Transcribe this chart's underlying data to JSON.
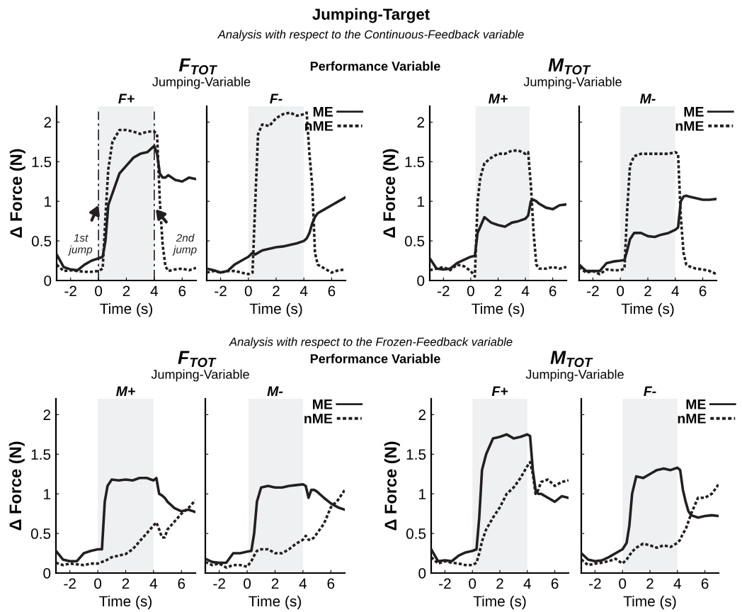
{
  "chart_data": [
    {
      "type": "line",
      "title": "F+",
      "xlabel": "Time (s)",
      "ylabel": "Δ Force (N)",
      "x": [
        -3,
        -2.5,
        -2,
        -1.5,
        -1,
        -0.5,
        0,
        0.3,
        0.5,
        0.7,
        1,
        1.5,
        2,
        2.5,
        3,
        3.5,
        4,
        4.2,
        4.4,
        4.6,
        4.8,
        5,
        5.5,
        6,
        6.5,
        7
      ],
      "xlim": [
        -3,
        7
      ],
      "ylim": [
        0,
        2.2
      ],
      "xticks": [
        -2,
        0,
        2,
        4,
        6
      ],
      "yticks": [
        0,
        0.5,
        1,
        1.5,
        2
      ],
      "grid": false,
      "legend": false,
      "bands": [
        {
          "axis": "x",
          "from": 0,
          "to": 4,
          "color": "#eff0f2"
        }
      ],
      "ref_lines": [
        {
          "axis": "x",
          "value": 0,
          "color": "#231f20",
          "line_style": "dashed"
        },
        {
          "axis": "x",
          "value": 4,
          "color": "#231f20",
          "line_style": "dashed"
        }
      ],
      "annotations": [
        "Jumping-Target",
        "Analysis with respect to the Continuous-Feedback variable",
        "Performance Variable",
        "F$_{TOT}$",
        "Jumping-Variable",
        {
          "text": "1st jump",
          "x": 0,
          "y": 0.95
        },
        {
          "text": "2nd jump",
          "x": 4.1,
          "y": 0.9
        }
      ],
      "series": [
        {
          "color": "#231f20",
          "line_style": "solid",
          "values": [
            0.33,
            0.17,
            0.14,
            0.13,
            0.2,
            0.25,
            0.28,
            0.3,
            0.5,
            0.95,
            1.1,
            1.35,
            1.45,
            1.55,
            1.6,
            1.62,
            1.7,
            1.6,
            1.35,
            1.3,
            1.3,
            1.33,
            1.27,
            1.25,
            1.3,
            1.28
          ]
        },
        {
          "color": "#231f20",
          "line_style": "dotted",
          "values": [
            0.2,
            0.12,
            0.13,
            0.12,
            0.11,
            0.11,
            0.12,
            0.15,
            0.8,
            1.4,
            1.75,
            1.9,
            1.9,
            1.88,
            1.85,
            1.88,
            1.88,
            1.85,
            1.0,
            0.45,
            0.18,
            0.12,
            0.14,
            0.15,
            0.13,
            0.16
          ]
        }
      ]
    },
    {
      "type": "line",
      "title": "F-",
      "xlabel": "Time (s)",
      "x": [
        -3,
        -2.5,
        -2,
        -1.5,
        -1,
        -0.5,
        0,
        0.3,
        0.5,
        0.7,
        1,
        1.5,
        2,
        2.5,
        3,
        3.5,
        4,
        4.2,
        4.4,
        4.6,
        4.8,
        5,
        5.5,
        6,
        6.5,
        7
      ],
      "xlim": [
        -3,
        7
      ],
      "ylim": [
        0,
        2.2
      ],
      "xticks": [
        -2,
        0,
        2,
        4,
        6
      ],
      "yticks": [
        0,
        0.5,
        1,
        1.5,
        2
      ],
      "tick_labels": "x",
      "grid": false,
      "legend": "top right",
      "bands": [
        {
          "axis": "x",
          "from": 0,
          "to": 4,
          "color": "#eff0f2"
        }
      ],
      "series": [
        {
          "name": "ME",
          "color": "#231f20",
          "line_style": "solid",
          "values": [
            0.15,
            0.13,
            0.1,
            0.12,
            0.2,
            0.25,
            0.3,
            0.35,
            0.33,
            0.35,
            0.38,
            0.4,
            0.42,
            0.43,
            0.45,
            0.47,
            0.5,
            0.53,
            0.6,
            0.72,
            0.8,
            0.85,
            0.9,
            0.95,
            1.0,
            1.05
          ]
        },
        {
          "name": "nME",
          "color": "#231f20",
          "line_style": "dotted",
          "values": [
            0.1,
            0.12,
            0.1,
            0.12,
            0.12,
            0.1,
            0.08,
            0.1,
            1.0,
            1.85,
            1.97,
            1.95,
            2.05,
            2.1,
            2.12,
            2.08,
            2.1,
            2.12,
            1.6,
            1.2,
            0.35,
            0.2,
            0.15,
            0.1,
            0.13,
            0.14
          ]
        }
      ]
    },
    {
      "type": "line",
      "title": "M+",
      "xlabel": "Time (s)",
      "ylabel": "Δ Force (N)",
      "x": [
        -3,
        -2.5,
        -2,
        -1.5,
        -1,
        -0.5,
        0,
        0.3,
        0.5,
        0.7,
        1,
        1.5,
        2,
        2.5,
        3,
        3.5,
        4,
        4.2,
        4.4,
        4.6,
        4.8,
        5,
        5.5,
        6,
        6.5,
        7
      ],
      "xlim": [
        -3,
        7
      ],
      "ylim": [
        0,
        2.2
      ],
      "xticks": [
        -2,
        0,
        2,
        4,
        6
      ],
      "yticks": [
        0,
        0.5,
        1,
        1.5,
        2
      ],
      "grid": false,
      "legend": false,
      "bands": [
        {
          "axis": "x",
          "from": 0.35,
          "to": 4.3,
          "color": "#eff0f2"
        }
      ],
      "annotations": [
        "M$_{TOT}$",
        "Jumping-Variable"
      ],
      "series": [
        {
          "color": "#231f20",
          "line_style": "solid",
          "values": [
            0.28,
            0.15,
            0.14,
            0.15,
            0.22,
            0.26,
            0.3,
            0.31,
            0.6,
            0.68,
            0.8,
            0.73,
            0.7,
            0.68,
            0.73,
            0.75,
            0.78,
            0.82,
            1.0,
            1.02,
            1.0,
            0.97,
            0.92,
            0.9,
            0.95,
            0.96
          ]
        },
        {
          "color": "#231f20",
          "line_style": "dotted",
          "values": [
            0.13,
            0.15,
            0.17,
            0.13,
            0.2,
            0.18,
            0.12,
            0.05,
            1.0,
            1.3,
            1.48,
            1.55,
            1.6,
            1.6,
            1.64,
            1.64,
            1.6,
            1.62,
            1.2,
            0.6,
            0.2,
            0.15,
            0.15,
            0.17,
            0.15,
            0.17
          ]
        }
      ]
    },
    {
      "type": "line",
      "title": "M-",
      "xlabel": "Time (s)",
      "x": [
        -3,
        -2.5,
        -2,
        -1.5,
        -1,
        -0.5,
        0,
        0.3,
        0.5,
        0.7,
        1,
        1.5,
        2,
        2.5,
        3,
        3.5,
        4,
        4.2,
        4.4,
        4.6,
        4.8,
        5,
        5.5,
        6,
        6.5,
        7
      ],
      "xlim": [
        -3,
        7
      ],
      "ylim": [
        0,
        2.2
      ],
      "xticks": [
        -2,
        0,
        2,
        4,
        6
      ],
      "yticks": [
        0,
        0.5,
        1,
        1.5,
        2
      ],
      "tick_labels": "x",
      "grid": false,
      "legend": "top right",
      "bands": [
        {
          "axis": "x",
          "from": 0,
          "to": 4,
          "color": "#eff0f2"
        }
      ],
      "series": [
        {
          "name": "ME",
          "color": "#231f20",
          "line_style": "solid",
          "values": [
            0.2,
            0.12,
            0.12,
            0.12,
            0.22,
            0.24,
            0.25,
            0.26,
            0.38,
            0.52,
            0.6,
            0.6,
            0.56,
            0.55,
            0.58,
            0.6,
            0.64,
            0.67,
            1.0,
            1.06,
            1.07,
            1.06,
            1.04,
            1.02,
            1.02,
            1.03
          ]
        },
        {
          "name": "nME",
          "color": "#231f20",
          "line_style": "dotted",
          "values": [
            0.17,
            0.1,
            0.12,
            0.08,
            0.14,
            0.13,
            0.13,
            0.15,
            0.9,
            1.45,
            1.57,
            1.6,
            1.6,
            1.6,
            1.6,
            1.6,
            1.62,
            1.6,
            0.8,
            0.35,
            0.2,
            0.18,
            0.15,
            0.14,
            0.12,
            0.08
          ]
        }
      ]
    },
    {
      "type": "line",
      "title": "M+",
      "xlabel": "Time (s)",
      "ylabel": "Δ Force (N)",
      "x": [
        -3,
        -2.5,
        -2,
        -1.5,
        -1,
        -0.5,
        0,
        0.3,
        0.5,
        0.7,
        1,
        1.5,
        2,
        2.5,
        3,
        3.5,
        4,
        4.2,
        4.4,
        4.6,
        4.8,
        5,
        5.5,
        6,
        6.5,
        7
      ],
      "xlim": [
        -3,
        7
      ],
      "ylim": [
        0,
        2.2
      ],
      "xticks": [
        -2,
        0,
        2,
        4,
        6
      ],
      "yticks": [
        0,
        0.5,
        1,
        1.5,
        2
      ],
      "grid": false,
      "legend": false,
      "bands": [
        {
          "axis": "x",
          "from": 0,
          "to": 4,
          "color": "#eff0f2"
        }
      ],
      "annotations": [
        "Analysis with respect to the Frozen-Feedback variable",
        "Performance Variable",
        "F$_{TOT}$",
        "Jumping-Variable"
      ],
      "series": [
        {
          "color": "#231f20",
          "line_style": "solid",
          "values": [
            0.28,
            0.17,
            0.15,
            0.15,
            0.25,
            0.28,
            0.3,
            0.3,
            0.9,
            1.1,
            1.18,
            1.17,
            1.18,
            1.17,
            1.2,
            1.2,
            1.17,
            1.2,
            1.0,
            0.98,
            0.95,
            0.9,
            0.82,
            0.78,
            0.8,
            0.77
          ]
        },
        {
          "color": "#231f20",
          "line_style": "dotted",
          "values": [
            0.13,
            0.1,
            0.12,
            0.11,
            0.1,
            0.12,
            0.12,
            0.14,
            0.15,
            0.17,
            0.2,
            0.22,
            0.24,
            0.3,
            0.4,
            0.5,
            0.6,
            0.64,
            0.55,
            0.45,
            0.45,
            0.55,
            0.65,
            0.75,
            0.82,
            0.92
          ]
        }
      ]
    },
    {
      "type": "line",
      "title": "M-",
      "xlabel": "Time (s)",
      "x": [
        -3,
        -2.5,
        -2,
        -1.5,
        -1,
        -0.5,
        0,
        0.3,
        0.5,
        0.7,
        1,
        1.5,
        2,
        2.5,
        3,
        3.5,
        4,
        4.2,
        4.4,
        4.6,
        4.8,
        5,
        5.5,
        6,
        6.5,
        7
      ],
      "xlim": [
        -3,
        7
      ],
      "ylim": [
        0,
        2.2
      ],
      "xticks": [
        -2,
        0,
        2,
        4,
        6
      ],
      "yticks": [
        0,
        0.5,
        1,
        1.5,
        2
      ],
      "tick_labels": "x",
      "grid": false,
      "legend": "top right",
      "bands": [
        {
          "axis": "x",
          "from": 0.1,
          "to": 4,
          "color": "#eff0f2"
        }
      ],
      "series": [
        {
          "name": "ME",
          "color": "#231f20",
          "line_style": "solid",
          "values": [
            0.18,
            0.14,
            0.13,
            0.13,
            0.25,
            0.25,
            0.27,
            0.28,
            0.5,
            0.9,
            1.08,
            1.1,
            1.08,
            1.08,
            1.1,
            1.11,
            1.12,
            1.1,
            0.95,
            1.05,
            1.05,
            1.03,
            0.95,
            0.88,
            0.83,
            0.8
          ]
        },
        {
          "name": "nME",
          "color": "#231f20",
          "line_style": "dotted",
          "values": [
            0.14,
            0.1,
            0.12,
            0.07,
            0.1,
            0.1,
            0.08,
            0.15,
            0.22,
            0.28,
            0.3,
            0.3,
            0.25,
            0.25,
            0.3,
            0.37,
            0.42,
            0.47,
            0.42,
            0.42,
            0.45,
            0.5,
            0.62,
            0.83,
            0.92,
            1.05
          ]
        }
      ]
    },
    {
      "type": "line",
      "title": "F+",
      "xlabel": "Time (s)",
      "ylabel": "Δ Force (N)",
      "x": [
        -3,
        -2.5,
        -2,
        -1.5,
        -1,
        -0.5,
        0,
        0.3,
        0.5,
        0.7,
        1,
        1.5,
        2,
        2.5,
        3,
        3.5,
        4,
        4.2,
        4.4,
        4.6,
        4.8,
        5,
        5.5,
        6,
        6.5,
        7
      ],
      "xlim": [
        -3,
        7
      ],
      "ylim": [
        0,
        2.2
      ],
      "xticks": [
        -2,
        0,
        2,
        4,
        6
      ],
      "yticks": [
        0,
        0.5,
        1,
        1.5,
        2
      ],
      "grid": false,
      "legend": false,
      "bands": [
        {
          "axis": "x",
          "from": 0,
          "to": 4,
          "color": "#eff0f2"
        }
      ],
      "annotations": [
        "M$_{TOT}$",
        "Jumping-Variable"
      ],
      "series": [
        {
          "color": "#231f20",
          "line_style": "solid",
          "values": [
            0.3,
            0.15,
            0.16,
            0.15,
            0.22,
            0.26,
            0.28,
            0.3,
            0.7,
            1.3,
            1.5,
            1.7,
            1.72,
            1.75,
            1.7,
            1.72,
            1.75,
            1.73,
            1.3,
            1.05,
            1.0,
            1.0,
            0.95,
            0.9,
            0.97,
            0.95
          ]
        },
        {
          "color": "#231f20",
          "line_style": "dotted",
          "values": [
            0.2,
            0.12,
            0.15,
            0.13,
            0.12,
            0.1,
            0.1,
            0.13,
            0.25,
            0.4,
            0.55,
            0.7,
            0.83,
            1.0,
            1.08,
            1.2,
            1.35,
            1.4,
            1.25,
            1.0,
            1.05,
            1.15,
            1.18,
            1.1,
            1.15,
            1.17
          ]
        }
      ]
    },
    {
      "type": "line",
      "title": "F-",
      "xlabel": "Time (s)",
      "x": [
        -3,
        -2.5,
        -2,
        -1.5,
        -1,
        -0.5,
        0,
        0.3,
        0.5,
        0.7,
        1,
        1.5,
        2,
        2.5,
        3,
        3.5,
        4,
        4.2,
        4.4,
        4.6,
        4.8,
        5,
        5.5,
        6,
        6.5,
        7
      ],
      "xlim": [
        -3,
        7
      ],
      "ylim": [
        0,
        2.2
      ],
      "xticks": [
        -2,
        0,
        2,
        4,
        6
      ],
      "yticks": [
        0,
        0.5,
        1,
        1.5,
        2
      ],
      "tick_labels": "x",
      "grid": false,
      "legend": "top right",
      "bands": [
        {
          "axis": "x",
          "from": 0,
          "to": 4,
          "color": "#eff0f2"
        }
      ],
      "series": [
        {
          "name": "ME",
          "color": "#231f20",
          "line_style": "solid",
          "values": [
            0.25,
            0.17,
            0.15,
            0.16,
            0.2,
            0.25,
            0.3,
            0.38,
            0.6,
            1.0,
            1.22,
            1.2,
            1.25,
            1.3,
            1.32,
            1.3,
            1.33,
            1.3,
            1.05,
            0.9,
            0.78,
            0.73,
            0.7,
            0.72,
            0.73,
            0.72
          ]
        },
        {
          "name": "nME",
          "color": "#231f20",
          "line_style": "dotted",
          "values": [
            0.17,
            0.1,
            0.12,
            0.13,
            0.15,
            0.18,
            0.12,
            0.17,
            0.22,
            0.27,
            0.32,
            0.37,
            0.35,
            0.32,
            0.35,
            0.33,
            0.38,
            0.42,
            0.5,
            0.55,
            0.65,
            0.75,
            0.95,
            0.95,
            1.0,
            1.12
          ]
        }
      ]
    }
  ]
}
